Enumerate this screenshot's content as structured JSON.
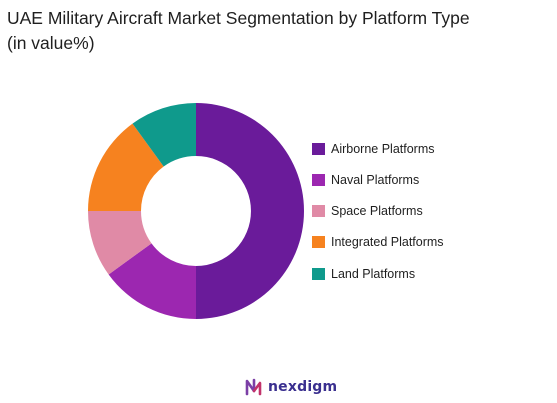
{
  "title_line1": "UAE Military Aircraft Market Segmentation by Platform Type",
  "title_line2": "(in value%)",
  "chart_data": {
    "type": "pie",
    "donut": true,
    "title": "UAE Military Aircraft Market Segmentation by Platform Type (in value%)",
    "categories": [
      "Airborne Platforms",
      "Naval Platforms",
      "Space Platforms",
      "Integrated Platforms",
      "Land Platforms"
    ],
    "values": [
      50,
      15,
      10,
      15,
      10
    ],
    "colors": [
      "#6a1b9a",
      "#9c27b0",
      "#e08aa6",
      "#f6821f",
      "#0f9a8c"
    ],
    "legend_placement": "right"
  },
  "legend_labels": [
    "Airborne Platforms",
    "Naval Platforms",
    "Space Platforms",
    "Integrated Platforms",
    "Land Platforms"
  ],
  "logo": {
    "text": "nexdigm",
    "icon": "nexdigm-logo-icon",
    "color": "#3a2f8f"
  }
}
